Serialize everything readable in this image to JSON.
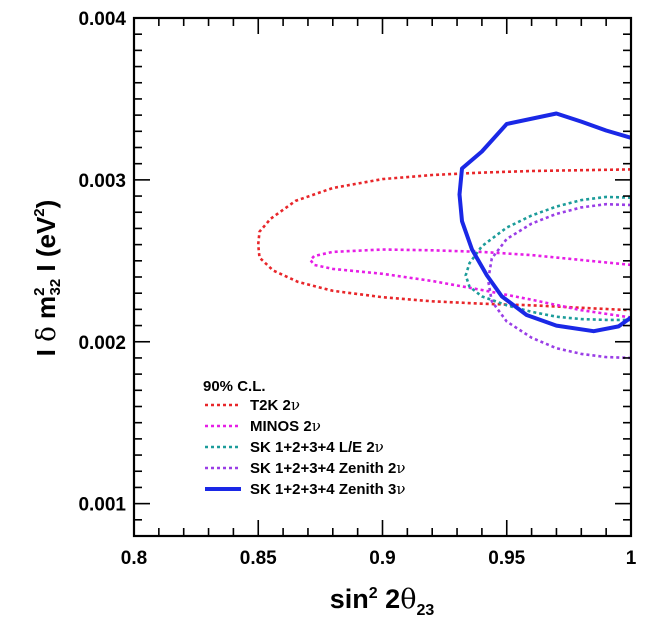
{
  "chart_data": {
    "type": "line",
    "title": "",
    "xlabel": {
      "base": "sin",
      "sup": "2",
      "middle": " 2",
      "greek": "θ",
      "sub": "23"
    },
    "ylabel": {
      "pre": "I ",
      "delta": "δ",
      "m": " m",
      "sup": "2",
      "sub": "32",
      "post": " I  (eV",
      "unit_sup": "2",
      "close": ")"
    },
    "xlim": [
      0.8,
      1.0
    ],
    "ylim": [
      0.0008,
      0.004
    ],
    "x_ticks": [
      0.8,
      0.85,
      0.9,
      0.95,
      1.0
    ],
    "x_tick_labels": [
      "0.8",
      "0.85",
      "0.9",
      "0.95",
      "1"
    ],
    "y_ticks": [
      0.001,
      0.002,
      0.003,
      0.004
    ],
    "y_tick_labels": [
      "0.001",
      "0.002",
      "0.003",
      "0.004"
    ],
    "legend_title": "90% C.L.",
    "legend_position": "bottom-left",
    "series": [
      {
        "name": "T2K 2ν",
        "label_text": "T2K 2",
        "label_nu": "ν",
        "color": "#e8262a",
        "style": "dotted",
        "points": [
          [
            1.0,
            0.003065
          ],
          [
            0.98,
            0.00306
          ],
          [
            0.96,
            0.003055
          ],
          [
            0.94,
            0.003045
          ],
          [
            0.92,
            0.00303
          ],
          [
            0.9,
            0.003005
          ],
          [
            0.88,
            0.00295
          ],
          [
            0.865,
            0.00287
          ],
          [
            0.855,
            0.00276
          ],
          [
            0.8505,
            0.00268
          ],
          [
            0.85,
            0.0026
          ],
          [
            0.8505,
            0.00252
          ],
          [
            0.856,
            0.00244
          ],
          [
            0.866,
            0.00237
          ],
          [
            0.88,
            0.002315
          ],
          [
            0.9,
            0.002275
          ],
          [
            0.92,
            0.00225
          ],
          [
            0.94,
            0.002235
          ],
          [
            0.96,
            0.002225
          ],
          [
            0.98,
            0.00221
          ],
          [
            1.0,
            0.002195
          ]
        ]
      },
      {
        "name": "MINOS 2ν",
        "label_text": "MINOS 2",
        "label_nu": "ν",
        "color": "#e61ee6",
        "style": "dotted",
        "points": [
          [
            1.0,
            0.002475
          ],
          [
            0.98,
            0.002505
          ],
          [
            0.96,
            0.002535
          ],
          [
            0.94,
            0.002555
          ],
          [
            0.92,
            0.002565
          ],
          [
            0.9,
            0.00257
          ],
          [
            0.88,
            0.002555
          ],
          [
            0.8725,
            0.00253
          ],
          [
            0.871,
            0.002505
          ],
          [
            0.8725,
            0.002475
          ],
          [
            0.88,
            0.00245
          ],
          [
            0.9,
            0.00242
          ],
          [
            0.92,
            0.002375
          ],
          [
            0.94,
            0.00232
          ],
          [
            0.96,
            0.00226
          ],
          [
            0.98,
            0.002195
          ],
          [
            1.0,
            0.00215
          ]
        ]
      },
      {
        "name": "SK 1+2+3+4 L/E 2ν",
        "label_text": "SK 1+2+3+4 L/E 2",
        "label_nu": "ν",
        "color": "#1c9c9a",
        "style": "dotted",
        "points": [
          [
            1.0,
            0.00289
          ],
          [
            0.99,
            0.002895
          ],
          [
            0.98,
            0.002875
          ],
          [
            0.97,
            0.002835
          ],
          [
            0.96,
            0.00278
          ],
          [
            0.95,
            0.002705
          ],
          [
            0.94,
            0.00259
          ],
          [
            0.935,
            0.002485
          ],
          [
            0.9335,
            0.00241
          ],
          [
            0.935,
            0.00234
          ],
          [
            0.94,
            0.00228
          ],
          [
            0.95,
            0.002225
          ],
          [
            0.96,
            0.002185
          ],
          [
            0.97,
            0.002155
          ],
          [
            0.98,
            0.00214
          ],
          [
            0.99,
            0.002135
          ],
          [
            1.0,
            0.002135
          ]
        ]
      },
      {
        "name": "SK 1+2+3+4 Zenith 2ν",
        "label_text": "SK 1+2+3+4 Zenith 2",
        "label_nu": "ν",
        "color": "#9a3ee6",
        "style": "dotted",
        "points": [
          [
            1.0,
            0.002845
          ],
          [
            0.99,
            0.00285
          ],
          [
            0.98,
            0.00283
          ],
          [
            0.97,
            0.00279
          ],
          [
            0.96,
            0.00273
          ],
          [
            0.95,
            0.002635
          ],
          [
            0.944,
            0.002515
          ],
          [
            0.9425,
            0.00238
          ],
          [
            0.944,
            0.00225
          ],
          [
            0.95,
            0.002125
          ],
          [
            0.96,
            0.002025
          ],
          [
            0.97,
            0.00196
          ],
          [
            0.98,
            0.001925
          ],
          [
            0.99,
            0.001905
          ],
          [
            1.0,
            0.0019
          ]
        ]
      },
      {
        "name": "SK 1+2+3+4 Zenith 3ν",
        "label_text": "SK 1+2+3+4 Zenith 3",
        "label_nu": "ν",
        "color": "#1a28e6",
        "style": "solid",
        "points": [
          [
            1.0,
            0.00326
          ],
          [
            0.99,
            0.003305
          ],
          [
            0.98,
            0.00336
          ],
          [
            0.97,
            0.00341
          ],
          [
            0.95,
            0.003345
          ],
          [
            0.94,
            0.003175
          ],
          [
            0.932,
            0.00307
          ],
          [
            0.931,
            0.00291
          ],
          [
            0.932,
            0.002745
          ],
          [
            0.936,
            0.00257
          ],
          [
            0.942,
            0.00241
          ],
          [
            0.948,
            0.00228
          ],
          [
            0.958,
            0.002165
          ],
          [
            0.97,
            0.0021
          ],
          [
            0.985,
            0.002065
          ],
          [
            0.995,
            0.002095
          ],
          [
            1.0,
            0.00215
          ]
        ]
      }
    ]
  }
}
